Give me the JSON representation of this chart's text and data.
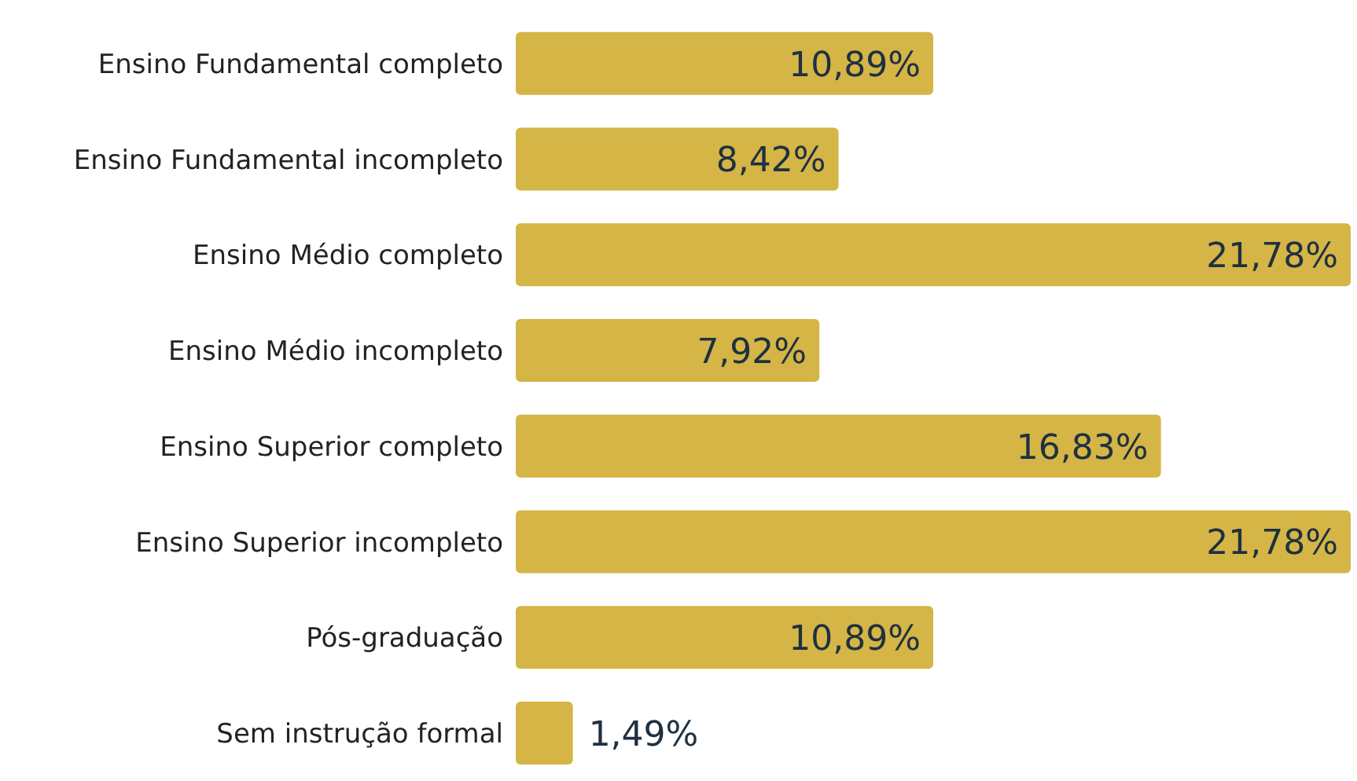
{
  "chart_data": {
    "type": "bar",
    "orientation": "horizontal",
    "categories": [
      "Ensino Fundamental completo",
      "Ensino Fundamental incompleto",
      "Ensino Médio completo",
      "Ensino Médio incompleto",
      "Ensino Superior completo",
      "Ensino Superior incompleto",
      "Pós-graduação",
      "Sem instrução formal"
    ],
    "values": [
      10.89,
      8.42,
      21.78,
      7.92,
      16.83,
      21.78,
      10.89,
      1.49
    ],
    "value_labels": [
      "10,89%",
      "8,42%",
      "21,78%",
      "7,92%",
      "16,83%",
      "21,78%",
      "10,89%",
      "1,49%"
    ],
    "color": "#d4b546",
    "legend": false,
    "grid": false
  }
}
